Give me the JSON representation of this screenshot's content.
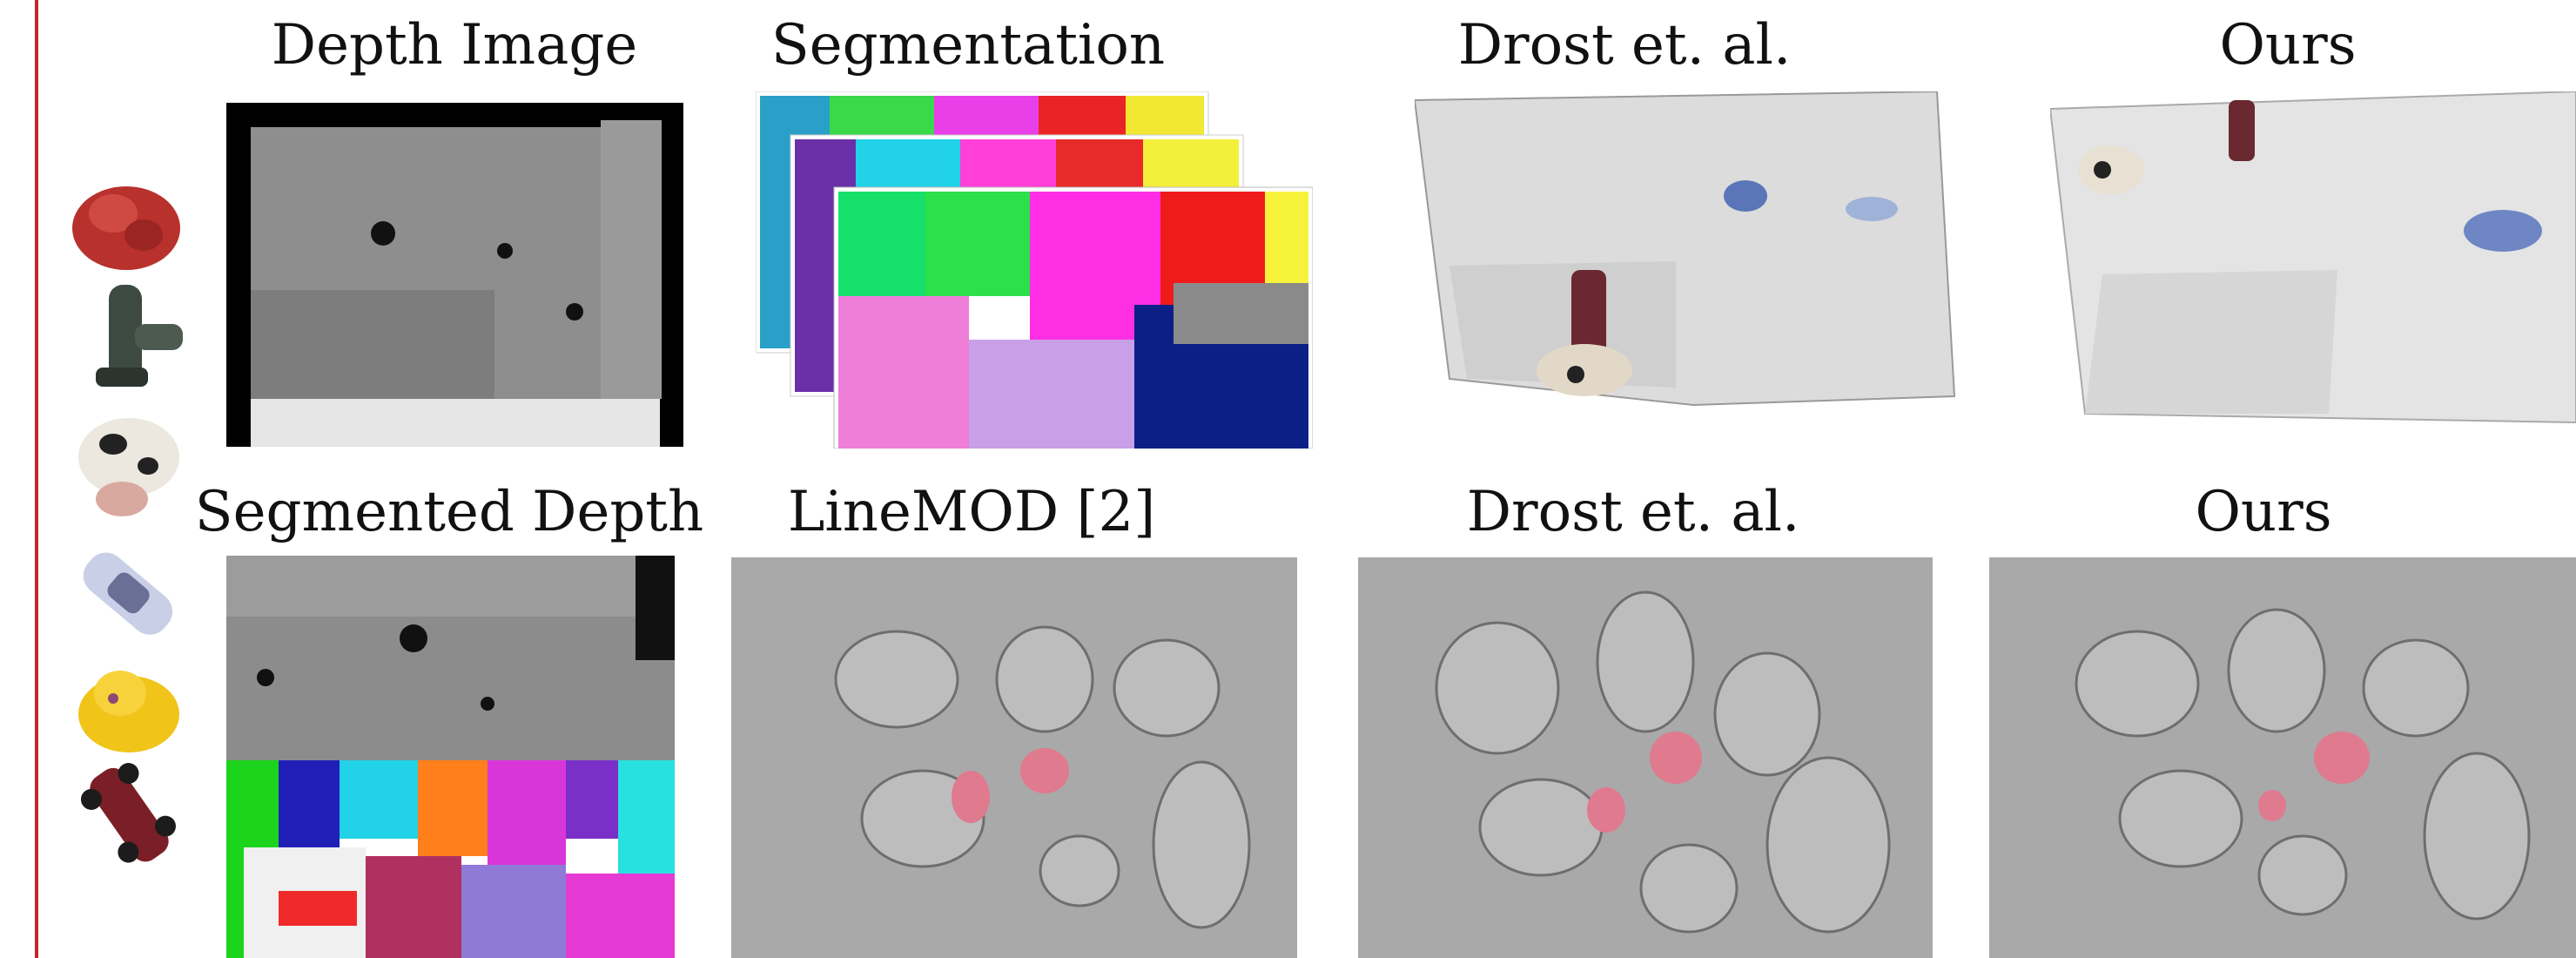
{
  "figure": {
    "row1_titles": [
      "Depth Image",
      "Segmentation",
      "Drost et. al.",
      "Ours"
    ],
    "row2_titles": [
      "Segmented Depth",
      "LineMOD [2]",
      "Drost et. al.",
      "Ours"
    ]
  },
  "objects": [
    "ape-icon",
    "drill-icon",
    "cow-icon",
    "car-icon",
    "duck-icon",
    "toy-car-icon"
  ],
  "colors": {
    "frame_line": "#c0282d",
    "highlight_pink": "#e07a8e",
    "depth_gray": "#8c8c8c",
    "surface_gray": "#a9a9a9"
  }
}
